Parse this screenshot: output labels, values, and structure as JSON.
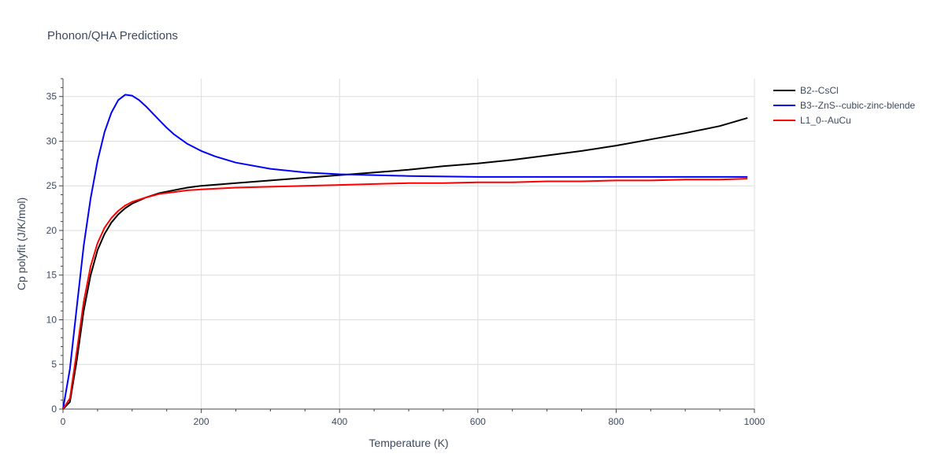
{
  "chart_data": {
    "type": "line",
    "title": "Phonon/QHA Predictions",
    "xlabel": "Temperature (K)",
    "ylabel": "Cp polyfit (J/K/mol)",
    "xlim": [
      0,
      1000
    ],
    "ylim": [
      0,
      37
    ],
    "x_ticks": [
      0,
      200,
      400,
      600,
      800,
      1000
    ],
    "y_ticks": [
      0,
      5,
      10,
      15,
      20,
      25,
      30,
      35
    ],
    "grid": true,
    "legend_position": "top-right",
    "series": [
      {
        "name": "B2--CsCl",
        "color": "#000000",
        "x": [
          0,
          10,
          20,
          30,
          40,
          50,
          60,
          70,
          80,
          90,
          100,
          120,
          140,
          160,
          180,
          200,
          250,
          300,
          350,
          400,
          450,
          500,
          550,
          600,
          650,
          700,
          750,
          800,
          850,
          900,
          950,
          990
        ],
        "y": [
          0,
          0.8,
          5.5,
          11,
          15,
          17.8,
          19.6,
          20.9,
          21.8,
          22.5,
          23.0,
          23.7,
          24.2,
          24.5,
          24.8,
          25.0,
          25.3,
          25.6,
          25.9,
          26.2,
          26.5,
          26.8,
          27.2,
          27.5,
          27.9,
          28.4,
          28.9,
          29.5,
          30.2,
          30.9,
          31.7,
          32.6
        ]
      },
      {
        "name": "B3--ZnS--cubic-zinc-blende",
        "color": "#0000ff",
        "x": [
          0,
          10,
          20,
          30,
          40,
          50,
          60,
          70,
          80,
          90,
          100,
          110,
          120,
          130,
          140,
          150,
          160,
          180,
          200,
          220,
          250,
          300,
          350,
          400,
          450,
          500,
          600,
          700,
          800,
          900,
          990
        ],
        "y": [
          0,
          4.5,
          11.5,
          18.3,
          23.6,
          27.8,
          31.0,
          33.2,
          34.6,
          35.2,
          35.1,
          34.6,
          33.9,
          33.1,
          32.3,
          31.5,
          30.8,
          29.7,
          28.9,
          28.3,
          27.6,
          26.9,
          26.5,
          26.3,
          26.2,
          26.1,
          26.0,
          26.0,
          26.0,
          26.0,
          26.0
        ]
      },
      {
        "name": "L1_0--AuCu",
        "color": "#ff0000",
        "x": [
          0,
          10,
          20,
          30,
          40,
          50,
          60,
          70,
          80,
          90,
          100,
          120,
          140,
          160,
          180,
          200,
          250,
          300,
          350,
          400,
          450,
          500,
          550,
          600,
          650,
          700,
          750,
          800,
          850,
          900,
          950,
          990
        ],
        "y": [
          0,
          1.2,
          6.5,
          12,
          16,
          18.6,
          20.3,
          21.4,
          22.2,
          22.8,
          23.2,
          23.7,
          24.1,
          24.3,
          24.5,
          24.6,
          24.8,
          24.9,
          25.0,
          25.1,
          25.2,
          25.3,
          25.3,
          25.4,
          25.4,
          25.5,
          25.5,
          25.6,
          25.6,
          25.7,
          25.7,
          25.8
        ]
      }
    ]
  }
}
